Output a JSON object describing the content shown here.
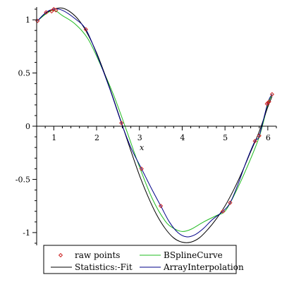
{
  "chart_data": {
    "type": "line",
    "xlabel": "x",
    "ylabel": "",
    "xlim": [
      0.6,
      6.2
    ],
    "ylim": [
      -1.12,
      1.12
    ],
    "x_ticks": [
      1,
      2,
      3,
      4,
      5,
      6
    ],
    "y_ticks": [
      -1,
      -0.5,
      0,
      0.5,
      1
    ],
    "x_tick_labels": [
      "1",
      "2",
      "3",
      "4",
      "5",
      "6"
    ],
    "y_tick_labels": [
      "-1",
      "-0.5",
      "0",
      "0.5",
      "1"
    ],
    "grid": false,
    "legend_position": "bottom",
    "series": [
      {
        "name": "raw points",
        "kind": "scatter",
        "color": "#cc2222",
        "x": [
          0.62,
          0.82,
          0.95,
          1.0,
          1.05,
          1.75,
          2.58,
          3.05,
          3.5,
          4.95,
          5.12,
          5.7,
          5.8,
          5.98,
          6.0,
          6.03,
          6.1
        ],
        "y": [
          0.99,
          1.07,
          1.08,
          1.1,
          1.09,
          0.91,
          0.03,
          -0.4,
          -0.75,
          -0.8,
          -0.72,
          -0.14,
          -0.09,
          0.21,
          0.22,
          0.23,
          0.3
        ]
      },
      {
        "name": "BSplineCurve",
        "kind": "line",
        "color": "#22bb22",
        "x": [
          0.62,
          0.8,
          1.0,
          1.2,
          1.5,
          1.8,
          2.1,
          2.4,
          2.7,
          3.0,
          3.3,
          3.6,
          3.8,
          4.0,
          4.2,
          4.5,
          4.8,
          5.0,
          5.2,
          5.5,
          5.8,
          6.0,
          6.1
        ],
        "y": [
          0.99,
          1.05,
          1.09,
          1.04,
          0.96,
          0.82,
          0.57,
          0.29,
          -0.04,
          -0.38,
          -0.68,
          -0.89,
          -0.96,
          -0.99,
          -0.97,
          -0.9,
          -0.84,
          -0.8,
          -0.66,
          -0.4,
          -0.1,
          0.2,
          0.3
        ]
      },
      {
        "name": "Statistics:-Fit",
        "kind": "line",
        "color": "#000000",
        "x": [
          0.62,
          0.8,
          1.0,
          1.2,
          1.4,
          1.6,
          1.8,
          2.0,
          2.2,
          2.4,
          2.6,
          2.8,
          3.0,
          3.2,
          3.4,
          3.6,
          3.8,
          4.0,
          4.2,
          4.4,
          4.6,
          4.8,
          5.0,
          5.2,
          5.4,
          5.6,
          5.8,
          6.0,
          6.1
        ],
        "y": [
          0.99,
          1.06,
          1.1,
          1.11,
          1.07,
          0.99,
          0.86,
          0.69,
          0.48,
          0.25,
          0.01,
          -0.23,
          -0.46,
          -0.66,
          -0.83,
          -0.96,
          -1.05,
          -1.09,
          -1.09,
          -1.05,
          -0.97,
          -0.87,
          -0.75,
          -0.6,
          -0.43,
          -0.24,
          -0.05,
          0.18,
          0.28
        ]
      },
      {
        "name": "ArrayInterpolation",
        "kind": "line",
        "color": "#000088",
        "x": [
          0.62,
          0.82,
          1.0,
          1.2,
          1.5,
          1.75,
          2.0,
          2.3,
          2.58,
          2.8,
          3.05,
          3.3,
          3.5,
          3.7,
          3.9,
          4.1,
          4.3,
          4.5,
          4.7,
          4.95,
          5.12,
          5.3,
          5.5,
          5.7,
          5.8,
          6.0,
          6.1
        ],
        "y": [
          0.99,
          1.07,
          1.1,
          1.09,
          1.01,
          0.91,
          0.68,
          0.36,
          0.03,
          -0.2,
          -0.4,
          -0.6,
          -0.75,
          -0.9,
          -1.0,
          -1.04,
          -1.02,
          -0.96,
          -0.88,
          -0.8,
          -0.72,
          -0.55,
          -0.33,
          -0.14,
          -0.09,
          0.22,
          0.3
        ]
      }
    ]
  }
}
